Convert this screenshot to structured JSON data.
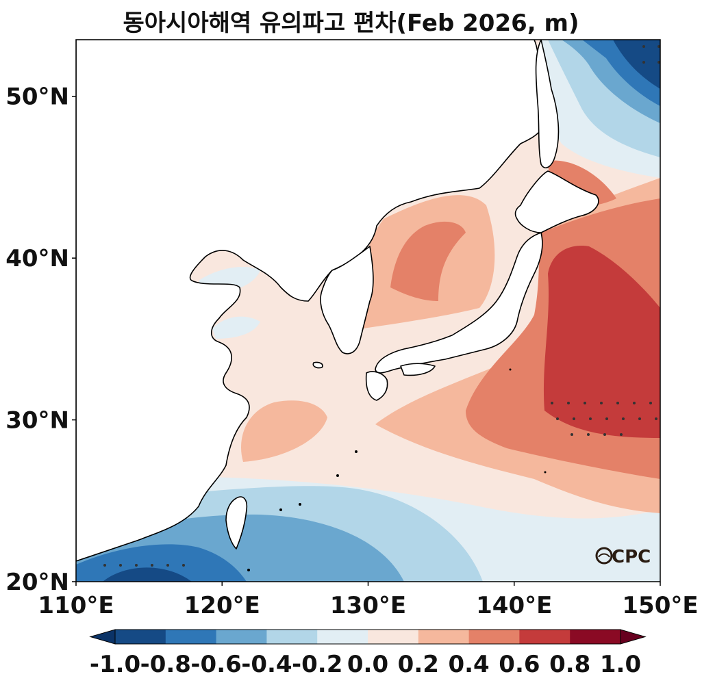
{
  "title": "동아시아해역 유의파고 편차(Feb 2026, m)",
  "map": {
    "lon_range": [
      110,
      150
    ],
    "lat_range": [
      20,
      53.5
    ],
    "x_ticks": [
      "110°E",
      "120°E",
      "130°E",
      "140°E",
      "150°E"
    ],
    "y_ticks": [
      "20°N",
      "30°N",
      "40°N",
      "50°N"
    ],
    "x_tick_values": [
      110,
      120,
      130,
      140,
      150
    ],
    "y_tick_values": [
      20,
      30,
      40,
      50
    ],
    "field": "significant wave height anomaly",
    "units": "m",
    "logo": "OCPC"
  },
  "colorbar": {
    "labels": [
      "-1.0",
      "-0.8",
      "-0.6",
      "-0.4",
      "-0.2",
      "0.0",
      "0.2",
      "0.4",
      "0.6",
      "0.8",
      "1.0"
    ],
    "levels": [
      -1.0,
      -0.8,
      -0.6,
      -0.4,
      -0.2,
      0.0,
      0.2,
      0.4,
      0.6,
      0.8,
      1.0
    ],
    "colors": [
      "#0b3367",
      "#154a85",
      "#2f77b7",
      "#6aa7cf",
      "#b2d6e8",
      "#e2eef4",
      "#f9e7de",
      "#f5b89d",
      "#e48168",
      "#c43b3b",
      "#8a0a24",
      "#67001f"
    ],
    "extend": "both"
  }
}
